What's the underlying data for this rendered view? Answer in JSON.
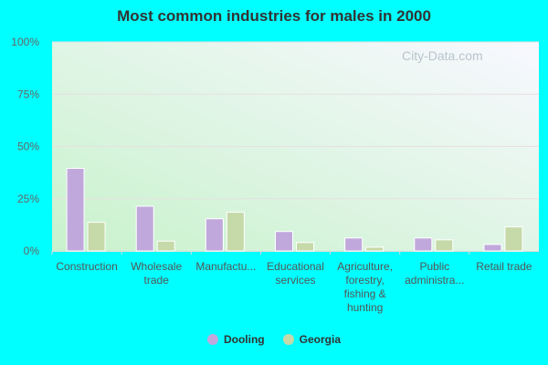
{
  "chart_data": {
    "type": "bar",
    "title": "Most common industries for males in 2000",
    "categories": [
      [
        "Construction"
      ],
      [
        "Wholesale",
        "trade"
      ],
      [
        "Manufactu..."
      ],
      [
        "Educational",
        "services"
      ],
      [
        "Agriculture,",
        "forestry,",
        "fishing &",
        "hunting"
      ],
      [
        "Public",
        "administra..."
      ],
      [
        "Retail trade"
      ]
    ],
    "series": [
      {
        "name": "Dooling",
        "color": "#c0a8dc",
        "values": [
          39.5,
          21.4,
          15.4,
          9.3,
          6.2,
          6.2,
          3.1
        ]
      },
      {
        "name": "Georgia",
        "color": "#c5d9a9",
        "values": [
          13.7,
          4.7,
          18.5,
          4.0,
          1.8,
          5.3,
          11.5
        ]
      }
    ],
    "yticks": [
      "0%",
      "25%",
      "50%",
      "75%",
      "100%"
    ],
    "ylim": [
      0,
      100
    ],
    "grid": true,
    "legend": "bottom"
  },
  "watermark": "City-Data.com"
}
